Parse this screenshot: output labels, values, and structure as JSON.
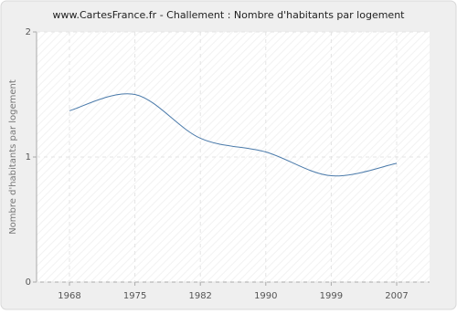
{
  "chart_data": {
    "type": "line",
    "title": "www.CartesFrance.fr - Challement : Nombre d'habitants par logement",
    "y_label": "Nombre d'habitants par logement",
    "categories": [
      "1968",
      "1975",
      "1982",
      "1990",
      "1999",
      "2007"
    ],
    "series": [
      {
        "name": "Challement",
        "color": "#4a7aaa",
        "values": [
          1.37,
          1.5,
          1.15,
          1.04,
          0.85,
          0.95
        ]
      }
    ],
    "ylim": [
      0,
      2
    ],
    "yticks": [
      0,
      1,
      2
    ],
    "grid": true
  }
}
